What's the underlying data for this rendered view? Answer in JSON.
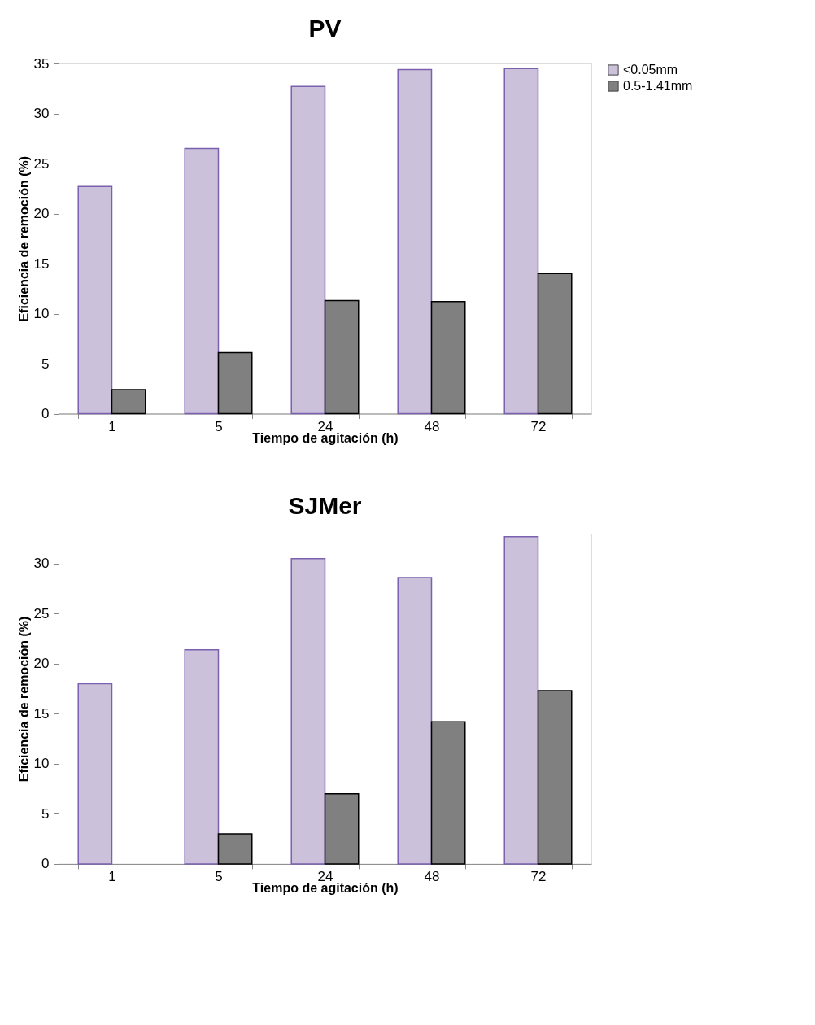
{
  "chart_data": [
    {
      "type": "bar",
      "title": "PV",
      "xlabel": "Tiempo de agitación (h)",
      "ylabel": "Eficiencia de remoción (%)",
      "categories": [
        "1",
        "5",
        "24",
        "48",
        "72"
      ],
      "ylim": [
        0,
        35
      ],
      "yticks": [
        0,
        5,
        10,
        15,
        20,
        25,
        30,
        35
      ],
      "grid": false,
      "legend": "right",
      "series": [
        {
          "name": "<0.05mm",
          "color": "#ccc1da",
          "values": [
            22.7,
            26.5,
            32.7,
            34.4,
            34.5
          ]
        },
        {
          "name": "0.5-1.41mm",
          "color": "#808080",
          "values": [
            2.4,
            6.1,
            11.3,
            11.2,
            14.0
          ]
        }
      ]
    },
    {
      "type": "bar",
      "title": "SJMer",
      "xlabel": "Tiempo de agitación (h)",
      "ylabel": "Eficiencia de remoción (%)",
      "categories": [
        "1",
        "5",
        "24",
        "48",
        "72"
      ],
      "ylim": [
        0,
        33
      ],
      "yticks": [
        0,
        5,
        10,
        15,
        20,
        25,
        30
      ],
      "grid": false,
      "legend": "right",
      "series": [
        {
          "name": "<0.05mm",
          "color": "#ccc1da",
          "values": [
            18.0,
            21.4,
            30.5,
            28.6,
            32.7
          ]
        },
        {
          "name": "0.5-1.41mm",
          "color": "#808080",
          "values": [
            null,
            3.0,
            7.0,
            14.2,
            17.3
          ]
        }
      ]
    }
  ]
}
